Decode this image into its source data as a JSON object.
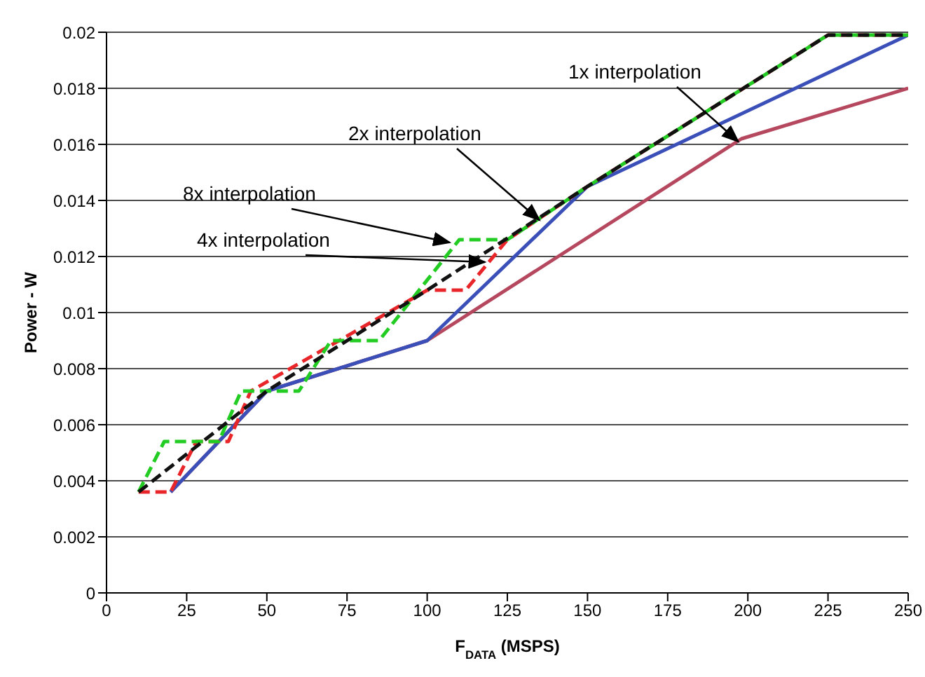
{
  "chart_data": {
    "type": "line",
    "xlabel": "F$_{DATA}$ (MSPS)",
    "ylabel": "Power - W",
    "xlim": [
      0,
      250
    ],
    "xticks": [
      0,
      25,
      50,
      75,
      100,
      125,
      150,
      175,
      200,
      225,
      250
    ],
    "ylim": [
      0,
      0.02
    ],
    "yticks": [
      0,
      0.002,
      0.004,
      0.006,
      0.008,
      0.01,
      0.012,
      0.014,
      0.016,
      0.018,
      0.02
    ],
    "grid": "y",
    "marker": "none",
    "series": [
      {
        "color": "#b5485e",
        "line_style": "solid",
        "x": [
          20,
          50,
          100,
          198,
          250
        ],
        "values": [
          0.0036,
          0.0072,
          0.009,
          0.0162,
          0.018
        ]
      },
      {
        "color": "#3b4fb8",
        "line_style": "solid",
        "x": [
          20,
          50,
          100,
          150,
          250
        ],
        "values": [
          0.0036,
          0.0072,
          0.009,
          0.0145,
          0.0199
        ]
      },
      {
        "color": "#e8262a",
        "line_style": "dashed",
        "x": [
          10,
          20,
          28,
          38,
          45,
          100,
          112,
          125,
          150,
          225,
          250
        ],
        "values": [
          0.0036,
          0.0036,
          0.0054,
          0.0054,
          0.0072,
          0.0108,
          0.0108,
          0.0126,
          0.0145,
          0.0199,
          0.0199
        ]
      },
      {
        "color": "#22cc22",
        "line_style": "dashed",
        "x": [
          10,
          18,
          35,
          42,
          60,
          70,
          85,
          110,
          125,
          150,
          225,
          250
        ],
        "values": [
          0.0036,
          0.0054,
          0.0054,
          0.0072,
          0.0072,
          0.009,
          0.009,
          0.0126,
          0.0126,
          0.0145,
          0.0199,
          0.0199
        ]
      },
      {
        "color": "#111111",
        "line_style": "dashed",
        "x": [
          10,
          50,
          100,
          150,
          225,
          250
        ],
        "values": [
          0.0036,
          0.0072,
          0.0108,
          0.0145,
          0.0199,
          0.0199
        ]
      }
    ],
    "annotations": [
      {
        "text": "1x interpolation",
        "x": 197,
        "y": 0.0161
      },
      {
        "text": "2x interpolation",
        "x": 135,
        "y": 0.0133
      },
      {
        "text": "8x interpolation",
        "x": 107,
        "y": 0.0125
      },
      {
        "text": "4x interpolation",
        "x": 118,
        "y": 0.0118
      }
    ]
  }
}
